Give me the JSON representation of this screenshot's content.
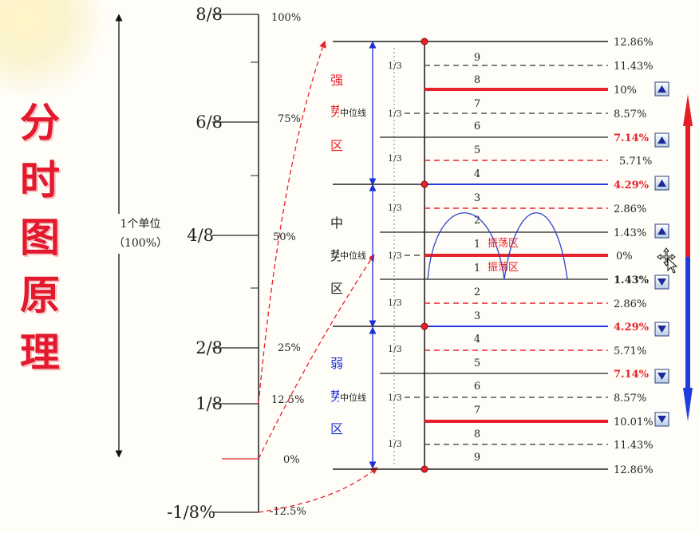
{
  "title_chars": [
    "分",
    "时",
    "图",
    "原",
    "理"
  ],
  "left_scale": {
    "ticks": [
      {
        "label": "8/8",
        "pct": "100%"
      },
      {
        "label": "6/8",
        "pct": "75%"
      },
      {
        "label": "4/8",
        "pct": "50%"
      },
      {
        "label": "2/8",
        "pct": "25%"
      },
      {
        "label": "1/8",
        "pct": "12.5%"
      },
      {
        "label": "",
        "pct": "0%"
      },
      {
        "label": "-1/8%",
        "pct": "-12.5%"
      }
    ],
    "unit_label": "1个单位",
    "unit_pct": "（100%）"
  },
  "zones": {
    "strong": [
      "强",
      "势",
      "区"
    ],
    "middle": [
      "中",
      "势",
      "区"
    ],
    "weak": [
      "弱",
      "势",
      "区"
    ]
  },
  "midline_label": "中位线",
  "third_label": "1/3",
  "oscillation_label": "振荡区",
  "levels": [
    {
      "num": "",
      "pct": "12.86%"
    },
    {
      "num": "9",
      "pct": "11.43%"
    },
    {
      "num": "8",
      "pct": "10%"
    },
    {
      "num": "7",
      "pct": "8.57%"
    },
    {
      "num": "6",
      "pct": "7.14%"
    },
    {
      "num": "5",
      "pct": "5.71%"
    },
    {
      "num": "4",
      "pct": "4.29%"
    },
    {
      "num": "3",
      "pct": "2.86%"
    },
    {
      "num": "2",
      "pct": "1.43%"
    },
    {
      "num": "1",
      "pct": "0%"
    },
    {
      "num": "1",
      "pct": "1.43%"
    },
    {
      "num": "2",
      "pct": "2.86%"
    },
    {
      "num": "3",
      "pct": "4.29%"
    },
    {
      "num": "4",
      "pct": "5.71%"
    },
    {
      "num": "5",
      "pct": "7.14%"
    },
    {
      "num": "6",
      "pct": "8.57%"
    },
    {
      "num": "7",
      "pct": "10.01%"
    },
    {
      "num": "8",
      "pct": "11.43%"
    },
    {
      "num": "9",
      "pct": "12.86%"
    }
  ],
  "colors": {
    "red": "#e8222a",
    "blue": "#1f2fd6",
    "dark": "#222222",
    "grid_dash": "#555555"
  },
  "icons": {
    "up": "up-arrow-button-icon",
    "down": "down-arrow-button-icon",
    "cursor": "move-cursor-icon"
  }
}
